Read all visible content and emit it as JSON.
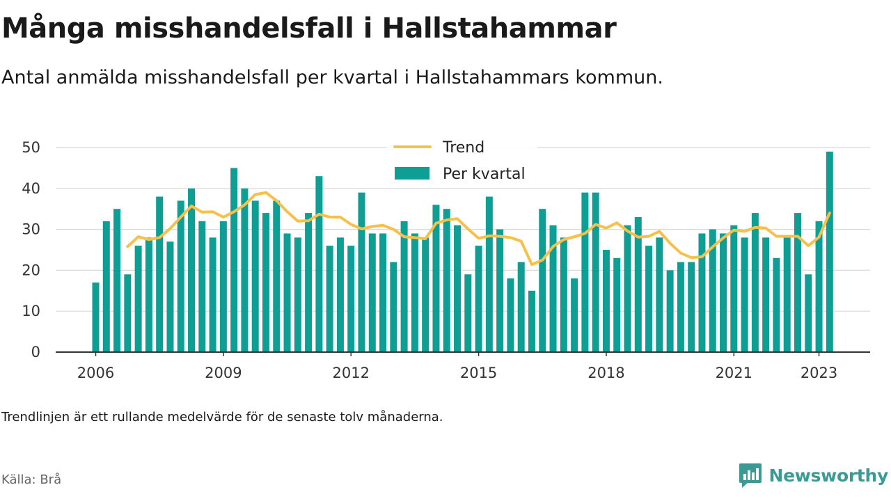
{
  "header": {
    "title": "Många misshandelsfall i Hallstahammar",
    "subtitle": "Antal anmälda misshandelsfall per kvartal i Hallstahammars kommun."
  },
  "footer": {
    "note": "Trendlinjen är ett rullande medelvärde för de senaste tolv månaderna.",
    "source": "Källa: Brå",
    "brand": "Newsworthy"
  },
  "colors": {
    "bars": "#0f9e94",
    "trend": "#f7c04a",
    "brand": "#3a9a94",
    "grid": "#d8d8d8",
    "axis": "#333333"
  },
  "chart_data": {
    "type": "bar",
    "x_tick_labels": [
      "2006",
      "2009",
      "2012",
      "2015",
      "2018",
      "2021",
      "2023"
    ],
    "x_tick_positions": [
      2006,
      2009,
      2012,
      2015,
      2018,
      2021,
      2023
    ],
    "y_ticks": [
      0,
      10,
      20,
      30,
      40,
      50
    ],
    "ylim": [
      0,
      50
    ],
    "grid": true,
    "legend_position": "top-center",
    "series": [
      {
        "name": "Per kvartal",
        "kind": "bar",
        "quarters": [
          "2006-Q1",
          "2006-Q2",
          "2006-Q3",
          "2006-Q4",
          "2007-Q1",
          "2007-Q2",
          "2007-Q3",
          "2007-Q4",
          "2008-Q1",
          "2008-Q2",
          "2008-Q3",
          "2008-Q4",
          "2009-Q1",
          "2009-Q2",
          "2009-Q3",
          "2009-Q4",
          "2010-Q1",
          "2010-Q2",
          "2010-Q3",
          "2010-Q4",
          "2011-Q1",
          "2011-Q2",
          "2011-Q3",
          "2011-Q4",
          "2012-Q1",
          "2012-Q2",
          "2012-Q3",
          "2012-Q4",
          "2013-Q1",
          "2013-Q2",
          "2013-Q3",
          "2013-Q4",
          "2014-Q1",
          "2014-Q2",
          "2014-Q3",
          "2014-Q4",
          "2015-Q1",
          "2015-Q2",
          "2015-Q3",
          "2015-Q4",
          "2016-Q1",
          "2016-Q2",
          "2016-Q3",
          "2016-Q4",
          "2017-Q1",
          "2017-Q2",
          "2017-Q3",
          "2017-Q4",
          "2018-Q1",
          "2018-Q2",
          "2018-Q3",
          "2018-Q4",
          "2019-Q1",
          "2019-Q2",
          "2019-Q3",
          "2019-Q4",
          "2020-Q1",
          "2020-Q2",
          "2020-Q3",
          "2020-Q4",
          "2021-Q1",
          "2021-Q2",
          "2021-Q3",
          "2021-Q4",
          "2022-Q1",
          "2022-Q2",
          "2022-Q3",
          "2022-Q4",
          "2023-Q1",
          "2023-Q2"
        ],
        "values": [
          17,
          32,
          35,
          19,
          26,
          28,
          38,
          27,
          37,
          40,
          32,
          28,
          32,
          45,
          40,
          37,
          34,
          37,
          29,
          28,
          34,
          43,
          26,
          28,
          26,
          39,
          29,
          29,
          22,
          32,
          29,
          28,
          36,
          35,
          31,
          19,
          26,
          38,
          30,
          18,
          22,
          15,
          35,
          31,
          28,
          18,
          39,
          39,
          25,
          23,
          31,
          33,
          26,
          28,
          20,
          22,
          22,
          29,
          30,
          29,
          31,
          28,
          34,
          28,
          23,
          28,
          34,
          19,
          32,
          49
        ]
      },
      {
        "name": "Trend",
        "kind": "line",
        "start_quarter": "2006-Q4",
        "values": [
          25.8,
          28.2,
          27.5,
          28.0,
          30.2,
          33.0,
          35.7,
          34.2,
          34.3,
          33.0,
          34.3,
          36.0,
          38.5,
          39.0,
          37.0,
          34.3,
          32.0,
          32.1,
          33.7,
          33.0,
          33.0,
          31.2,
          30.1,
          30.7,
          31.0,
          30.0,
          28.2,
          28.0,
          27.7,
          31.5,
          32.3,
          32.6,
          30.1,
          27.8,
          28.4,
          28.3,
          28.0,
          27.1,
          21.4,
          22.5,
          25.8,
          27.5,
          28.2,
          29.0,
          31.2,
          30.3,
          31.6,
          29.6,
          28.1,
          28.3,
          29.5,
          26.6,
          24.2,
          23.1,
          23.3,
          25.7,
          27.9,
          29.8,
          29.5,
          30.5,
          30.3,
          28.3,
          28.3,
          28.3,
          26.0,
          28.1,
          34.0
        ]
      }
    ]
  }
}
